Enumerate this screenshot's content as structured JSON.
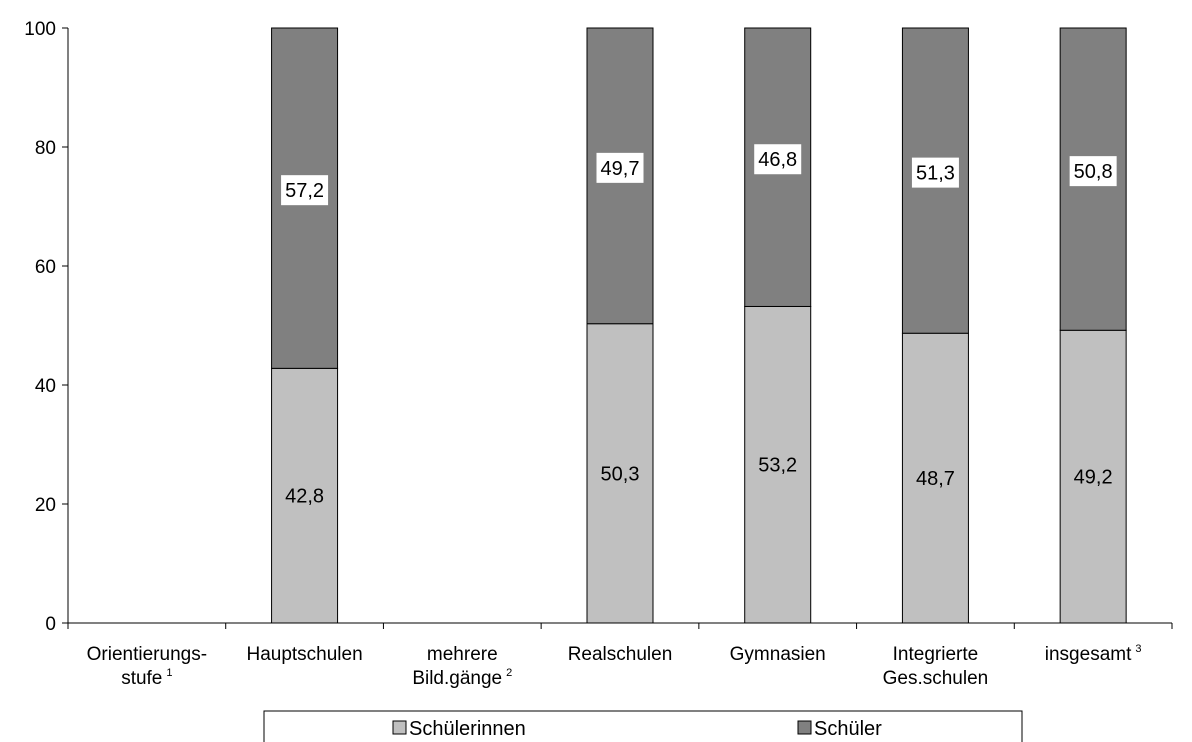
{
  "chart_data": {
    "type": "bar",
    "stacked": true,
    "categories": [
      {
        "lines": [
          "Orientierungs-",
          "stufe"
        ],
        "sup": "1"
      },
      {
        "lines": [
          "Hauptschulen"
        ],
        "sup": ""
      },
      {
        "lines": [
          "mehrere",
          "Bild.gänge"
        ],
        "sup": "2"
      },
      {
        "lines": [
          "Realschulen"
        ],
        "sup": ""
      },
      {
        "lines": [
          "Gymnasien"
        ],
        "sup": ""
      },
      {
        "lines": [
          "Integrierte",
          "Ges.schulen"
        ],
        "sup": ""
      },
      {
        "lines": [
          "insgesamt"
        ],
        "sup": "3"
      }
    ],
    "series": [
      {
        "name": "Schülerinnen",
        "color": "#c0c0c0",
        "values": [
          null,
          42.8,
          null,
          50.3,
          53.2,
          48.7,
          49.2
        ],
        "labels": [
          "",
          "42,8",
          "",
          "50,3",
          "53,2",
          "48,7",
          "49,2"
        ]
      },
      {
        "name": "Schüler",
        "color": "#808080",
        "values": [
          null,
          57.2,
          null,
          49.7,
          46.8,
          51.3,
          50.8
        ],
        "labels": [
          "",
          "57,2",
          "",
          "49,7",
          "46,8",
          "51,3",
          "50,8"
        ]
      }
    ],
    "yticks": [
      0,
      20,
      40,
      60,
      80,
      100
    ],
    "ylim": [
      0,
      100
    ],
    "title": "",
    "xlabel": "",
    "ylabel": "",
    "grid": false,
    "legend": "bottom"
  }
}
